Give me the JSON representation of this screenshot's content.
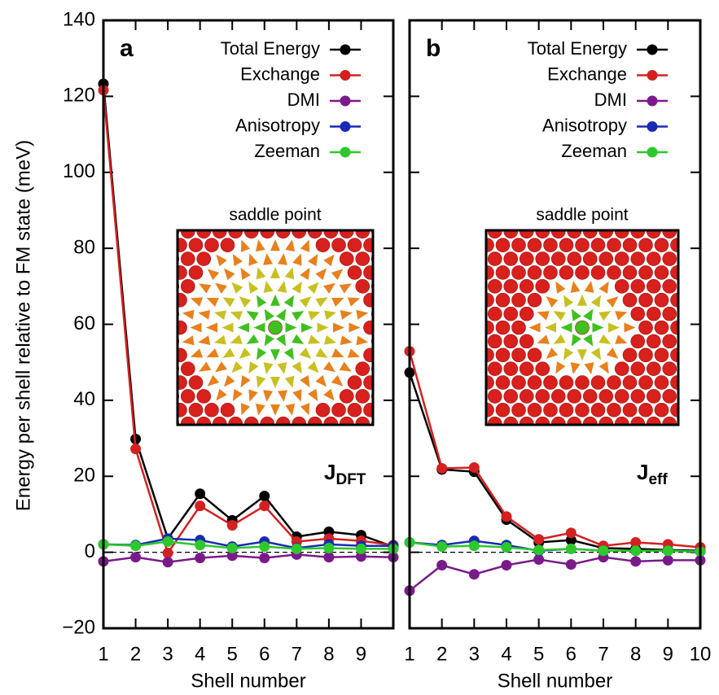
{
  "chart_data": [
    {
      "type": "line",
      "panel_label": "a",
      "y_label": "Energy per shell relative to FM state (meV)",
      "x_label": "Shell number",
      "inset_title": "saddle point",
      "annotation": {
        "main": "J",
        "sub": "DFT"
      },
      "x": [
        1,
        2,
        3,
        4,
        5,
        6,
        7,
        8,
        9,
        10
      ],
      "xlim": [
        1,
        10
      ],
      "xticks": [
        1,
        2,
        3,
        4,
        5,
        6,
        7,
        8,
        9
      ],
      "ylim": [
        -20,
        140
      ],
      "yticks": [
        {
          "value": -20,
          "label": "−20"
        },
        0,
        20,
        40,
        60,
        80,
        100,
        120,
        140
      ],
      "legend": "upper right",
      "series": [
        {
          "name": "Total Energy",
          "color": "#000000",
          "values": [
            123.3,
            29.8,
            3.6,
            15.4,
            8.4,
            14.8,
            4.1,
            5.4,
            4.5,
            1.5
          ]
        },
        {
          "name": "Exchange",
          "color": "#d42020",
          "values": [
            121.6,
            27.2,
            -0.2,
            12.2,
            7.1,
            12.2,
            2.8,
            3.6,
            3.0,
            1.9
          ]
        },
        {
          "name": "DMI",
          "color": "#7a1a8a",
          "values": [
            -2.4,
            -1.3,
            -2.6,
            -1.5,
            -0.9,
            -1.5,
            -0.6,
            -1.3,
            -1.1,
            -1.3
          ]
        },
        {
          "name": "Anisotropy",
          "color": "#1a2ab5",
          "values": [
            2.1,
            1.9,
            3.6,
            3.2,
            1.5,
            2.8,
            1.1,
            2.1,
            1.7,
            1.7
          ]
        },
        {
          "name": "Zeeman",
          "color": "#2cc82c",
          "values": [
            2.1,
            1.7,
            2.8,
            1.9,
            1.1,
            1.5,
            0.9,
            1.1,
            0.9,
            0.9
          ]
        }
      ]
    },
    {
      "type": "line",
      "panel_label": "b",
      "x_label": "Shell number",
      "inset_title": "saddle point",
      "annotation": {
        "main": "J",
        "sub": "eff"
      },
      "x": [
        1,
        2,
        3,
        4,
        5,
        6,
        7,
        8,
        9,
        10
      ],
      "xlim": [
        1,
        10
      ],
      "xticks": [
        1,
        2,
        3,
        4,
        5,
        6,
        7,
        8,
        9,
        10
      ],
      "ylim": [
        -20,
        140
      ],
      "yticks": [
        -20,
        0,
        20,
        40,
        60,
        80,
        100,
        120,
        140
      ],
      "legend": "upper right",
      "series": [
        {
          "name": "Total Energy",
          "color": "#000000",
          "values": [
            47.3,
            21.8,
            21.2,
            8.6,
            2.6,
            3.2,
            1.1,
            0.9,
            0.6,
            0.4
          ]
        },
        {
          "name": "Exchange",
          "color": "#d42020",
          "values": [
            52.9,
            22.1,
            22.3,
            9.4,
            3.4,
            5.1,
            1.7,
            2.6,
            2.1,
            1.3
          ]
        },
        {
          "name": "DMI",
          "color": "#7a1a8a",
          "values": [
            -10.1,
            -3.4,
            -5.8,
            -3.4,
            -1.9,
            -3.2,
            -1.3,
            -2.4,
            -2.1,
            -2.1
          ]
        },
        {
          "name": "Anisotropy",
          "color": "#1a2ab5",
          "values": [
            2.6,
            1.9,
            3.0,
            1.9,
            0.4,
            0.9,
            0.4,
            0.4,
            0.4,
            0.2
          ]
        },
        {
          "name": "Zeeman",
          "color": "#2cc82c",
          "values": [
            2.6,
            1.5,
            1.7,
            1.3,
            0.6,
            0.9,
            0.4,
            0.4,
            0.4,
            0.2
          ]
        }
      ]
    }
  ]
}
